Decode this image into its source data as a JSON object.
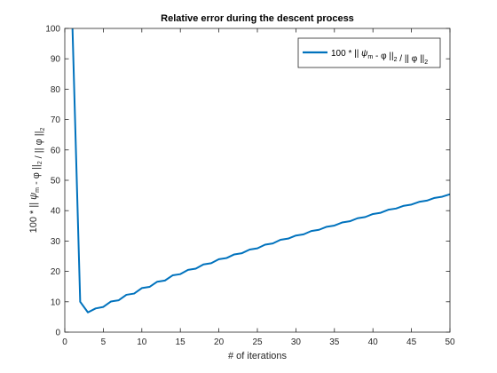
{
  "chart_data": {
    "type": "line",
    "title": "Relative error during the descent process",
    "xlabel": "# of iterations",
    "ylabel": "100 * || ψm - φ ||2 / || φ ||2",
    "xlim": [
      0,
      50
    ],
    "ylim": [
      0,
      100
    ],
    "xticks": [
      0,
      5,
      10,
      15,
      20,
      25,
      30,
      35,
      40,
      45,
      50
    ],
    "yticks": [
      0,
      10,
      20,
      30,
      40,
      50,
      60,
      70,
      80,
      90,
      100
    ],
    "grid": false,
    "legend_position": "top-right",
    "series": [
      {
        "name": "100 * || ψm - φ ||2 / || φ ||2",
        "color": "#0072BD",
        "x": [
          1,
          2,
          3,
          4,
          5,
          6,
          7,
          8,
          9,
          10,
          11,
          12,
          13,
          14,
          15,
          16,
          17,
          18,
          19,
          20,
          21,
          22,
          23,
          24,
          25,
          26,
          27,
          28,
          29,
          30,
          31,
          32,
          33,
          34,
          35,
          36,
          37,
          38,
          39,
          40,
          41,
          42,
          43,
          44,
          45,
          46,
          47,
          48,
          49,
          50
        ],
        "y": [
          100,
          10.0,
          6.5,
          7.8,
          8.3,
          10.1,
          10.5,
          12.3,
          12.7,
          14.5,
          14.9,
          16.6,
          17.0,
          18.7,
          19.1,
          20.5,
          20.9,
          22.3,
          22.7,
          24.0,
          24.4,
          25.6,
          26.0,
          27.2,
          27.6,
          28.8,
          29.2,
          30.4,
          30.8,
          31.8,
          32.2,
          33.3,
          33.7,
          34.7,
          35.1,
          36.1,
          36.5,
          37.5,
          37.9,
          38.9,
          39.3,
          40.3,
          40.7,
          41.6,
          42.0,
          42.9,
          43.3,
          44.2,
          44.6,
          45.4
        ]
      }
    ]
  }
}
